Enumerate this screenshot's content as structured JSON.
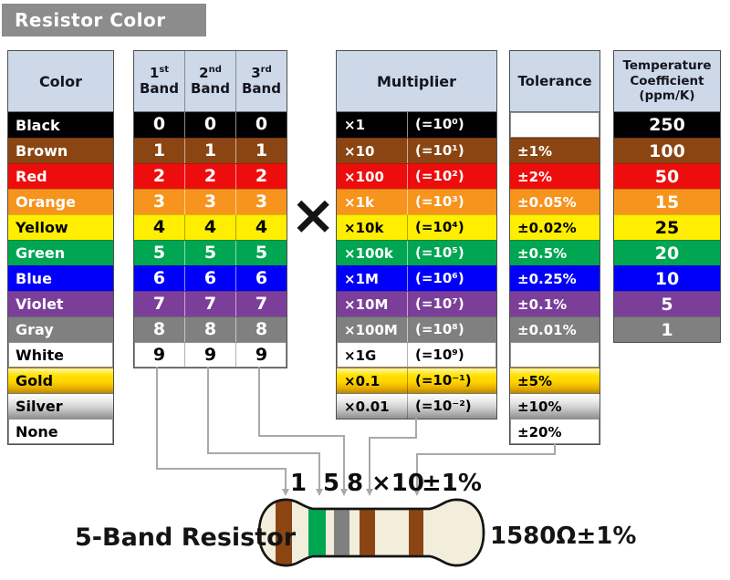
{
  "title": "Resistor Color Code",
  "multiply_symbol": "×",
  "headers": {
    "color": "Color",
    "bands": [
      {
        "num": "1",
        "suffix": "st",
        "word": "Band"
      },
      {
        "num": "2",
        "suffix": "nd",
        "word": "Band"
      },
      {
        "num": "3",
        "suffix": "rd",
        "word": "Band"
      }
    ],
    "multiplier": "Multiplier",
    "tolerance": "Tolerance",
    "temp_coefficient": "Temperature\nCoefficient\n(ppm/K)"
  },
  "rows": [
    {
      "name": "Black",
      "band": "0",
      "multiplier": "×1",
      "equiv": "(=10⁰)",
      "tolerance": "",
      "tempco": "250",
      "bg": "#000000",
      "fg": "#ffffff"
    },
    {
      "name": "Brown",
      "band": "1",
      "multiplier": "×10",
      "equiv": "(=10¹)",
      "tolerance": "±1%",
      "tempco": "100",
      "bg": "#8b4513",
      "fg": "#ffffff"
    },
    {
      "name": "Red",
      "band": "2",
      "multiplier": "×100",
      "equiv": "(=10²)",
      "tolerance": "±2%",
      "tempco": "50",
      "bg": "#ee0d0d",
      "fg": "#ffffff"
    },
    {
      "name": "Orange",
      "band": "3",
      "multiplier": "×1k",
      "equiv": "(=10³)",
      "tolerance": "±0.05%",
      "tempco": "15",
      "bg": "#f7941d",
      "fg": "#ffffff"
    },
    {
      "name": "Yellow",
      "band": "4",
      "multiplier": "×10k",
      "equiv": "(=10⁴)",
      "tolerance": "±0.02%",
      "tempco": "25",
      "bg": "#ffee00",
      "fg": "#000000"
    },
    {
      "name": "Green",
      "band": "5",
      "multiplier": "×100k",
      "equiv": "(=10⁵)",
      "tolerance": "±0.5%",
      "tempco": "20",
      "bg": "#00a651",
      "fg": "#ffffff"
    },
    {
      "name": "Blue",
      "band": "6",
      "multiplier": "×1M",
      "equiv": "(=10⁶)",
      "tolerance": "±0.25%",
      "tempco": "10",
      "bg": "#0000fa",
      "fg": "#ffffff"
    },
    {
      "name": "Violet",
      "band": "7",
      "multiplier": "×10M",
      "equiv": "(=10⁷)",
      "tolerance": "±0.1%",
      "tempco": "5",
      "bg": "#7b3f9a",
      "fg": "#ffffff"
    },
    {
      "name": "Gray",
      "band": "8",
      "multiplier": "×100M",
      "equiv": "(=10⁸)",
      "tolerance": "±0.01%",
      "tempco": "1",
      "bg": "#808080",
      "fg": "#ffffff"
    },
    {
      "name": "White",
      "band": "9",
      "multiplier": "×1G",
      "equiv": "(=10⁹)",
      "tolerance": "",
      "tempco": null,
      "bg": "#ffffff",
      "fg": "#000000"
    },
    {
      "name": "Gold",
      "band": null,
      "multiplier": "×0.1",
      "equiv": "(=10⁻¹)",
      "tolerance": "±5%",
      "tempco": null,
      "bg": "gold",
      "fg": "#000000"
    },
    {
      "name": "Silver",
      "band": null,
      "multiplier": "×0.01",
      "equiv": "(=10⁻²)",
      "tolerance": "±10%",
      "tempco": null,
      "bg": "silver",
      "fg": "#000000"
    },
    {
      "name": "None",
      "band": null,
      "multiplier": null,
      "equiv": null,
      "tolerance": "±20%",
      "tempco": null,
      "bg": "#ffffff",
      "fg": "#000000"
    }
  ],
  "resistor": {
    "caption": "5-Band Resistor",
    "value": "1580Ω±1%",
    "band_labels": [
      "1",
      "5",
      "8",
      "×10",
      "±1%"
    ],
    "band_colors": [
      "#8b4513",
      "#00a651",
      "#808080",
      "#8b4513",
      "#8b4513"
    ],
    "body_color": "#f2eedb",
    "outline_color": "#141414"
  },
  "palette": {
    "header_bg": "#cdd9e8",
    "title_bg": "#8c8c8c",
    "connector_line": "#a9a9a9"
  }
}
